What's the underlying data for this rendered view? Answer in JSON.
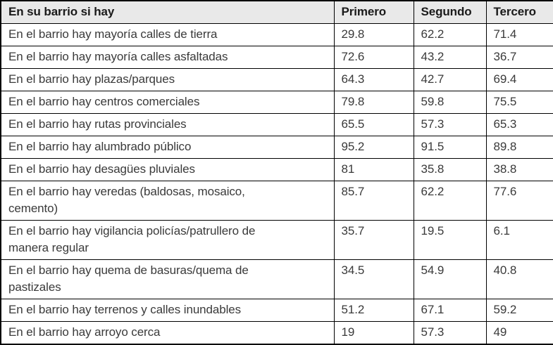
{
  "colors": {
    "header_bg": "#e9e9e9",
    "border": "#000000",
    "body_text": "#3a3a3a",
    "header_text": "#1a1a1a",
    "page_bg": "#ffffff"
  },
  "table": {
    "header": {
      "label": "En su barrio si hay",
      "cols": [
        "Primero",
        "Segundo",
        "Tercero"
      ]
    },
    "rows": [
      {
        "label": "En el barrio hay mayoría calles de tierra",
        "values": [
          "29.8",
          "62.2",
          "71.4"
        ]
      },
      {
        "label": "En el barrio hay mayoría calles asfaltadas",
        "values": [
          "72.6",
          "43.2",
          "36.7"
        ]
      },
      {
        "label": "En el barrio hay plazas/parques",
        "values": [
          "64.3",
          "42.7",
          "69.4"
        ]
      },
      {
        "label": "En el barrio hay centros comerciales",
        "values": [
          "79.8",
          "59.8",
          "75.5"
        ]
      },
      {
        "label": "En el barrio hay rutas provinciales",
        "values": [
          "65.5",
          "57.3",
          "65.3"
        ]
      },
      {
        "label": "En el barrio hay alumbrado público",
        "values": [
          "95.2",
          "91.5",
          "89.8"
        ]
      },
      {
        "label": "En el barrio hay desagües pluviales",
        "values": [
          "81",
          "35.8",
          "38.8"
        ]
      },
      {
        "label": "En el barrio hay veredas (baldosas, mosaico,\ncemento)",
        "values": [
          "85.7",
          "62.2",
          "77.6"
        ]
      },
      {
        "label": "En el barrio hay vigilancia policías/patrullero de\nmanera regular",
        "values": [
          "35.7",
          "19.5",
          "6.1"
        ]
      },
      {
        "label": "En el barrio hay quema de basuras/quema de\npastizales",
        "values": [
          "34.5",
          "54.9",
          "40.8"
        ]
      },
      {
        "label": "En el barrio hay terrenos y calles inundables",
        "values": [
          "51.2",
          "67.1",
          "59.2"
        ]
      },
      {
        "label": "En el barrio hay arroyo cerca",
        "values": [
          "19",
          "57.3",
          "49"
        ]
      }
    ]
  }
}
